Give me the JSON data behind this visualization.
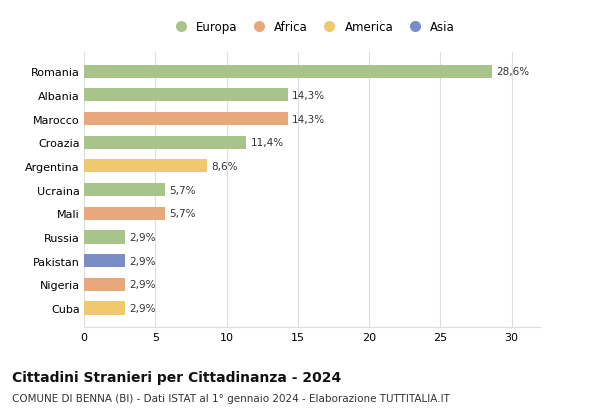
{
  "countries": [
    "Romania",
    "Albania",
    "Marocco",
    "Croazia",
    "Argentina",
    "Ucraina",
    "Mali",
    "Russia",
    "Pakistan",
    "Nigeria",
    "Cuba"
  ],
  "values": [
    28.6,
    14.3,
    14.3,
    11.4,
    8.6,
    5.7,
    5.7,
    2.9,
    2.9,
    2.9,
    2.9
  ],
  "labels": [
    "28,6%",
    "14,3%",
    "14,3%",
    "11,4%",
    "8,6%",
    "5,7%",
    "5,7%",
    "2,9%",
    "2,9%",
    "2,9%",
    "2,9%"
  ],
  "continents": [
    "Europa",
    "Europa",
    "Africa",
    "Europa",
    "America",
    "Europa",
    "Africa",
    "Europa",
    "Asia",
    "Africa",
    "America"
  ],
  "colors": {
    "Europa": "#a8c48a",
    "Africa": "#e8a87c",
    "America": "#f0c96e",
    "Asia": "#7a8dc4"
  },
  "legend_order": [
    "Europa",
    "Africa",
    "America",
    "Asia"
  ],
  "title": "Cittadini Stranieri per Cittadinanza - 2024",
  "subtitle": "COMUNE DI BENNA (BI) - Dati ISTAT al 1° gennaio 2024 - Elaborazione TUTTITALIA.IT",
  "xlim": [
    0,
    32
  ],
  "xticks": [
    0,
    5,
    10,
    15,
    20,
    25,
    30
  ],
  "bg_color": "#ffffff",
  "grid_color": "#dddddd",
  "bar_height": 0.55,
  "title_fontsize": 10,
  "subtitle_fontsize": 7.5,
  "label_fontsize": 7.5,
  "tick_fontsize": 8,
  "legend_fontsize": 8.5
}
